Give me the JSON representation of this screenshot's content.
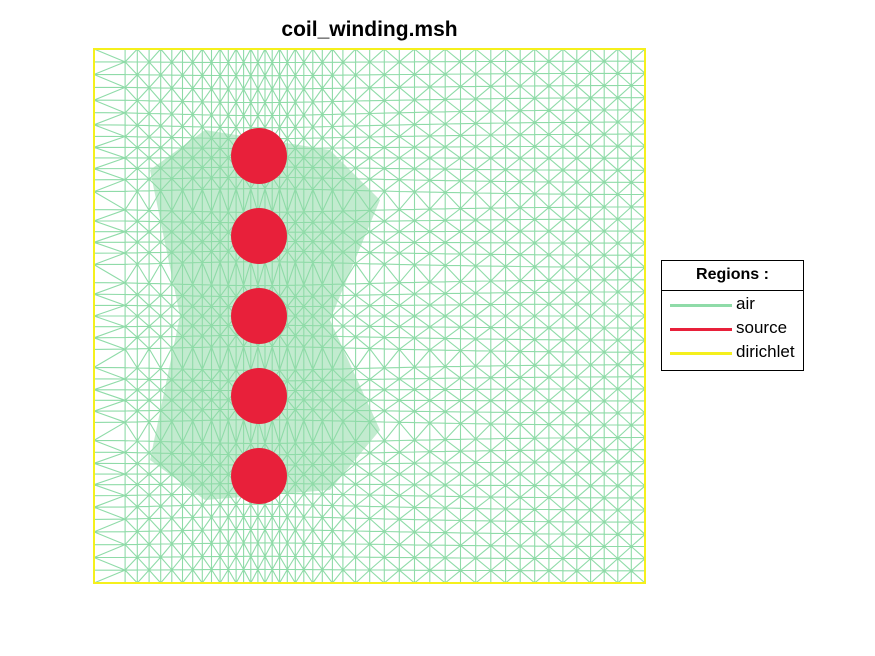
{
  "chart_data": {
    "type": "mesh",
    "title": "coil_winding.msh",
    "legend": {
      "title": "Regions :",
      "placement": "right",
      "entries": [
        {
          "name": "air",
          "color": "#8fdba8"
        },
        {
          "name": "source",
          "color": "#e8203a"
        },
        {
          "name": "dirichlet",
          "color": "#f5f01c"
        }
      ]
    },
    "regions": {
      "air": {
        "color": "#8fdba8"
      },
      "source": {
        "color": "#e8203a",
        "shape": "circle",
        "count": 5
      },
      "dirichlet": {
        "color": "#f5f01c",
        "shape": "rectangle-boundary"
      }
    },
    "axes": {
      "visible": false
    }
  }
}
